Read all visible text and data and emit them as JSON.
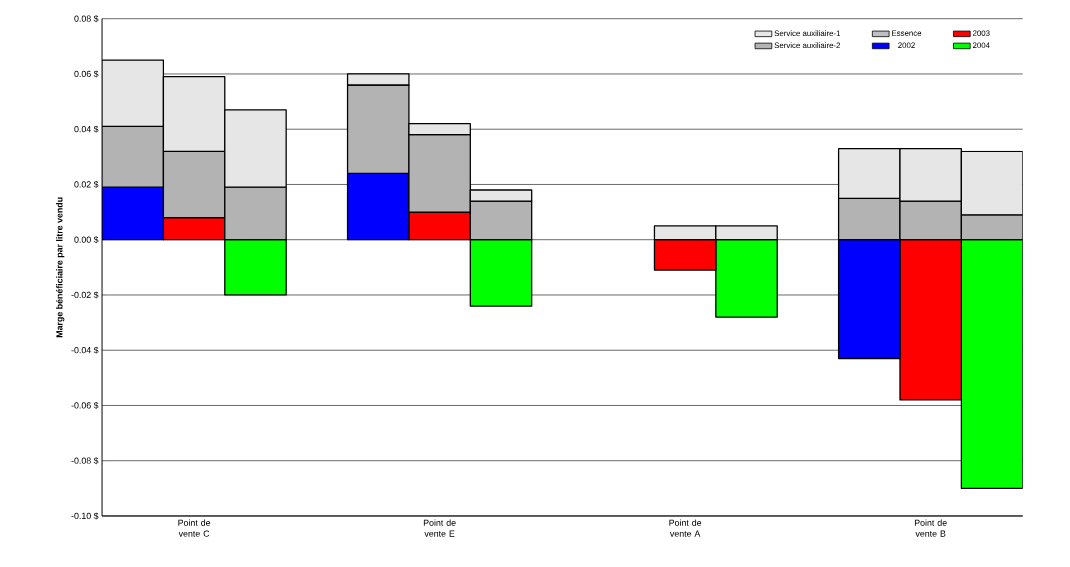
{
  "chart_data": {
    "type": "bar",
    "stacked": true,
    "ylabel": "Marge bénéficiaire par litre vendu",
    "categories": [
      null,
      "Point de vente C",
      null,
      null,
      null,
      "Point de vente E",
      null,
      null,
      null,
      "Point de vente A",
      null,
      null,
      null,
      "Point de vente B",
      null
    ],
    "series": [
      {
        "name": "2004",
        "color": "#00ff00",
        "values": [
          null,
          null,
          -0.02,
          null,
          null,
          null,
          -0.024,
          null,
          null,
          null,
          -0.028,
          null,
          null,
          null,
          -0.09
        ]
      },
      {
        "name": "2003",
        "color": "#ff0000",
        "values": [
          null,
          0.008,
          null,
          null,
          null,
          0.01,
          null,
          null,
          null,
          -0.011,
          null,
          null,
          null,
          -0.058,
          null
        ]
      },
      {
        "name": "2002",
        "color": "#0000ff",
        "values": [
          0.019,
          null,
          null,
          null,
          0.024,
          null,
          null,
          null,
          null,
          null,
          null,
          null,
          -0.043,
          null,
          null
        ]
      },
      {
        "name": "Essence",
        "color": "#c0c0c0",
        "values": [
          null,
          null,
          null,
          null,
          null,
          null,
          null,
          null,
          null,
          null,
          null,
          null,
          null,
          null,
          null
        ]
      },
      {
        "name": "Service auxiliaire-2",
        "color": "#b3b3b3",
        "values": [
          0.022,
          0.024,
          0.019,
          null,
          0.032,
          0.028,
          0.014,
          null,
          null,
          null,
          null,
          null,
          0.015,
          0.014,
          0.009
        ]
      },
      {
        "name": "Service auxiliaire-1",
        "color": "#e6e6e6",
        "values": [
          0.024,
          0.027,
          0.028,
          null,
          0.004,
          0.004,
          0.004,
          null,
          null,
          0.005,
          0.005,
          null,
          0.018,
          0.019,
          0.023
        ]
      }
    ],
    "ylim": [
      -0.1,
      0.08
    ],
    "yticks": [
      {
        "value": -0.1,
        "label": "-0.10 $"
      },
      {
        "value": -0.08,
        "label": "-0.08 $"
      },
      {
        "value": -0.06,
        "label": "-0.06 $"
      },
      {
        "value": -0.04,
        "label": "-0.04 $"
      },
      {
        "value": -0.02,
        "label": "-0.02 $"
      },
      {
        "value": 0.0,
        "label": "0.00 $"
      },
      {
        "value": 0.02,
        "label": "0.02 $"
      },
      {
        "value": 0.04,
        "label": "0.04 $"
      },
      {
        "value": 0.06,
        "label": "0.06 $"
      },
      {
        "value": 0.08,
        "label": "0.08 $"
      }
    ],
    "grid": "y",
    "legend": "top right"
  }
}
